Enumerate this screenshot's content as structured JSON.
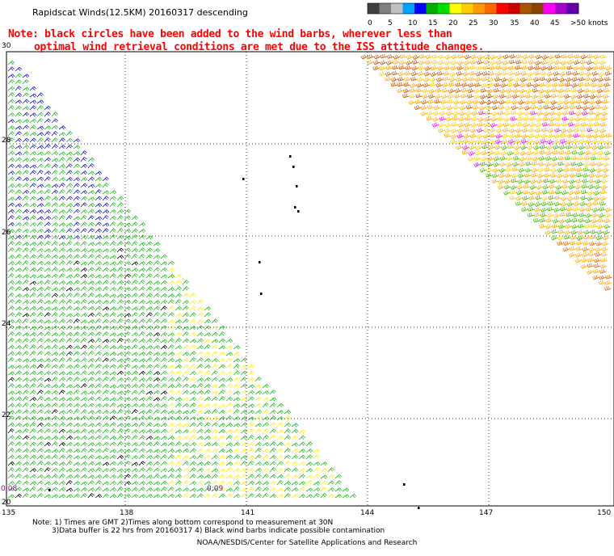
{
  "header": {
    "title": "Rapidscat Winds(12.5KM) 20160317 descending"
  },
  "note": {
    "line1": "Note: black circles have been added to the wind barbs, wherever less than",
    "line2": "optimal wind retrieval conditions are met due to the ISS attitude changes."
  },
  "legend": {
    "labels": [
      "0",
      "5",
      "10",
      "15",
      "20",
      "25",
      "30",
      "35",
      "40",
      "45",
      ">50 knots"
    ],
    "colors": [
      "#404040",
      "#7f7f7f",
      "#bfbfbf",
      "#00a0ff",
      "#0000ff",
      "#00b000",
      "#00e000",
      "#ffff00",
      "#ffcc00",
      "#ff9900",
      "#ff6600",
      "#ff0000",
      "#cc0000",
      "#aa5500",
      "#884400",
      "#ff00ff",
      "#aa00cc",
      "#6600aa"
    ]
  },
  "axes": {
    "lon_ticks": [
      "135",
      "138",
      "141",
      "144",
      "147",
      "150"
    ],
    "lat_ticks": [
      "30",
      "28",
      "26",
      "24",
      "22",
      "20"
    ]
  },
  "time_labels": [
    "0:08",
    "0:09"
  ],
  "footer": {
    "line1": "Note: 1) Times are GMT 2)Times along bottom correspond to measurement at 30N",
    "line2": "3)Data buffer is 22 hrs from 20160317 4) Black wind barbs indicate possible contamination",
    "credit": "NOAA/NESDIS/Center for Satellite Applications and Research"
  }
}
